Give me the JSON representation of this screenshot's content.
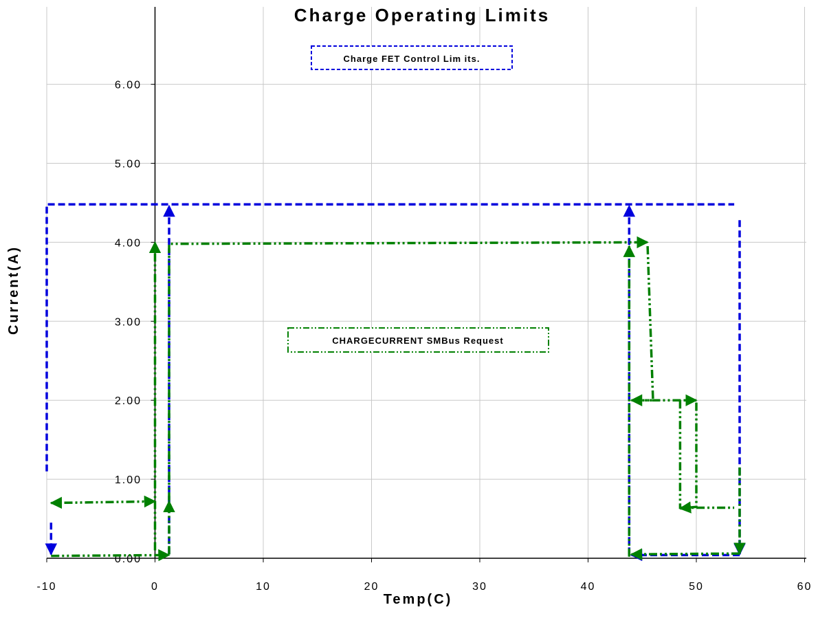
{
  "chart_data": {
    "type": "line",
    "title": "Charge Operating Limits",
    "xlabel": "Temp(C)",
    "ylabel": "Current(A)",
    "xlim": [
      -10,
      60
    ],
    "ylim": [
      0,
      6.5
    ],
    "x_ticks": [
      "-10",
      "0",
      "10",
      "20",
      "30",
      "40",
      "50",
      "60"
    ],
    "y_ticks": [
      "0.00",
      "1.00",
      "2.00",
      "3.00",
      "4.00",
      "5.00",
      "6.00"
    ],
    "grid": true,
    "annotations": [
      {
        "text": "Charge FET Control Lim its.",
        "style": "blue-dashed-box"
      },
      {
        "text": "CHARGECURRENT SMBus Request",
        "style": "green-dashdot-box"
      }
    ],
    "series": [
      {
        "role": "charge-fet-control-limits",
        "color": "#0000dd",
        "dash": "dashed",
        "segments": [
          {
            "points": [
              [
                -10,
                1.1
              ],
              [
                -10,
                4.48
              ],
              [
                53.5,
                4.48
              ]
            ]
          },
          {
            "points": [
              [
                -9.6,
                0.45
              ],
              [
                -9.6,
                0.05
              ]
            ],
            "arrow": "end"
          },
          {
            "points": [
              [
                1.3,
                0.05
              ],
              [
                1.3,
                4.46
              ]
            ],
            "arrow": "end"
          },
          {
            "points": [
              [
                43.8,
                0.05
              ],
              [
                43.8,
                4.46
              ]
            ],
            "arrow": "end"
          },
          {
            "points": [
              [
                54.0,
                4.28
              ],
              [
                54.0,
                0.05
              ]
            ],
            "arrow": "end"
          },
          {
            "points": [
              [
                54.0,
                0.04
              ],
              [
                44.0,
                0.04
              ]
            ],
            "arrow": "end"
          }
        ]
      },
      {
        "role": "chargecurrent-smbus-request",
        "color": "#008000",
        "dash": "dash-dot-dot",
        "segments": [
          {
            "points": [
              [
                0.0,
                0.72
              ],
              [
                -9.6,
                0.7
              ]
            ],
            "arrow": "both"
          },
          {
            "points": [
              [
                -9.6,
                0.03
              ],
              [
                1.3,
                0.04
              ]
            ],
            "arrow": "end"
          },
          {
            "points": [
              [
                0.0,
                0.1
              ],
              [
                0.0,
                4.0
              ]
            ],
            "arrow": "end"
          },
          {
            "points": [
              [
                1.3,
                0.05
              ],
              [
                1.3,
                0.72
              ]
            ],
            "arrow": "end"
          },
          {
            "points": [
              [
                1.3,
                0.73
              ],
              [
                1.3,
                3.98
              ],
              [
                45.5,
                4.0
              ]
            ],
            "arrow": "end"
          },
          {
            "points": [
              [
                45.5,
                3.95
              ],
              [
                46.0,
                2.0
              ],
              [
                44.0,
                2.0
              ]
            ],
            "arrow": "end"
          },
          {
            "points": [
              [
                44.0,
                2.0
              ],
              [
                50.0,
                2.0
              ]
            ],
            "arrow": "end"
          },
          {
            "points": [
              [
                43.8,
                0.02
              ],
              [
                43.8,
                3.95
              ]
            ],
            "arrow": "end"
          },
          {
            "points": [
              [
                50.0,
                1.97
              ],
              [
                50.0,
                0.65
              ],
              [
                48.5,
                0.63
              ]
            ],
            "arrow": "end"
          },
          {
            "points": [
              [
                48.5,
                2.0
              ],
              [
                48.5,
                0.64
              ],
              [
                53.5,
                0.64
              ]
            ]
          },
          {
            "points": [
              [
                54.0,
                1.15
              ],
              [
                54.0,
                0.06
              ]
            ],
            "arrow": "end"
          },
          {
            "points": [
              [
                54.0,
                0.06
              ],
              [
                44.0,
                0.05
              ]
            ],
            "arrow": "end"
          }
        ]
      }
    ]
  }
}
